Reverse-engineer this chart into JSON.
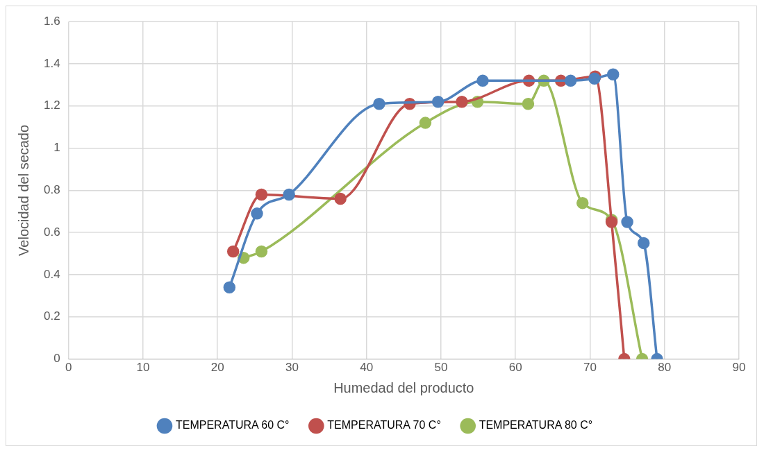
{
  "chart_data": {
    "type": "line",
    "xlabel": "Humedad del producto",
    "ylabel": "Velocidad del secado",
    "xlim": [
      0,
      90
    ],
    "xticks": [
      0,
      10,
      20,
      30,
      40,
      50,
      60,
      70,
      80,
      90
    ],
    "ylim": [
      0,
      1.6
    ],
    "yticks": [
      0,
      0.2,
      0.4,
      0.6,
      0.8,
      1,
      1.2,
      1.4,
      1.6
    ],
    "grid": true,
    "legend": "bottom",
    "marker": "circle",
    "line_style": "solid",
    "series": [
      {
        "name": "TEMPERATURA 60 C°",
        "color": "#4f81bd",
        "x": [
          21.6,
          25.3,
          29.6,
          41.7,
          49.6,
          55.6,
          67.4,
          70.6,
          73.1,
          75.0,
          77.2,
          79.0
        ],
        "values": [
          0.34,
          0.69,
          0.78,
          1.21,
          1.22,
          1.32,
          1.32,
          1.33,
          1.35,
          0.65,
          0.55,
          0
        ]
      },
      {
        "name": "TEMPERATURA 70 C°",
        "color": "#c0504d",
        "x": [
          22.1,
          25.9,
          36.5,
          45.8,
          52.8,
          61.8,
          66.1,
          70.7,
          72.9,
          74.6
        ],
        "values": [
          0.51,
          0.78,
          0.76,
          1.21,
          1.22,
          1.32,
          1.32,
          1.34,
          0.65,
          0
        ]
      },
      {
        "name": "TEMPERATURA 80 C°",
        "color": "#9bbb59",
        "x": [
          23.5,
          25.9,
          47.9,
          54.9,
          61.7,
          63.8,
          69.0,
          72.9,
          77.0
        ],
        "values": [
          0.48,
          0.51,
          1.12,
          1.22,
          1.21,
          1.32,
          0.74,
          0.66,
          0
        ]
      }
    ]
  }
}
